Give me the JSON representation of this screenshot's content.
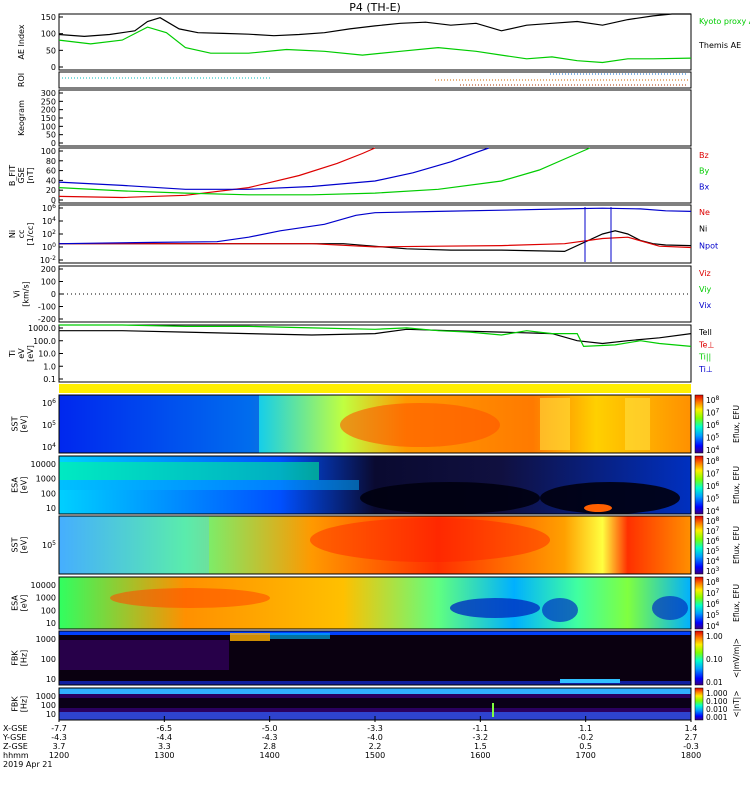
{
  "chart_data": {
    "type": "line",
    "title": "P4 (TH-E)",
    "panels": [
      {
        "ylabel": [
          "AE Index"
        ],
        "yticks": [
          "150",
          "100",
          "50",
          "0"
        ],
        "ylim": [
          0,
          150
        ],
        "legend": [
          {
            "name": "Kyoto proxy AE",
            "color": "#00cc00"
          },
          {
            "name": "Themis AE",
            "color": "#000000"
          }
        ],
        "series": [
          {
            "name": "Themis AE",
            "color": "#000000",
            "x": [
              0,
              0.04,
              0.08,
              0.12,
              0.14,
              0.16,
              0.19,
              0.22,
              0.26,
              0.3,
              0.34,
              0.38,
              0.42,
              0.46,
              0.5,
              0.54,
              0.58,
              0.62,
              0.66,
              0.7,
              0.74,
              0.78,
              0.82,
              0.86,
              0.9,
              0.94,
              0.97,
              1.0
            ],
            "y": [
              95,
              90,
              95,
              105,
              130,
              140,
              110,
              100,
              98,
              96,
              92,
              95,
              100,
              110,
              118,
              125,
              128,
              120,
              125,
              105,
              120,
              125,
              130,
              120,
              135,
              145,
              150,
              160
            ]
          },
          {
            "name": "Kyoto proxy AE",
            "color": "#00cc00",
            "x": [
              0,
              0.05,
              0.1,
              0.14,
              0.17,
              0.2,
              0.24,
              0.3,
              0.36,
              0.42,
              0.48,
              0.54,
              0.6,
              0.66,
              0.7,
              0.74,
              0.78,
              0.82,
              0.86,
              0.9,
              0.94,
              1.0
            ],
            "y": [
              80,
              70,
              80,
              115,
              100,
              60,
              45,
              45,
              55,
              50,
              40,
              50,
              60,
              50,
              40,
              30,
              35,
              25,
              20,
              30,
              30,
              32
            ]
          }
        ]
      },
      {
        "ylabel": [
          "ROI"
        ],
        "yticks": [],
        "series": []
      },
      {
        "ylabel": [
          "Keogram"
        ],
        "yticks": [
          "300",
          "250",
          "200",
          "150",
          "100",
          "50",
          "0"
        ],
        "ylim": [
          0,
          300
        ],
        "series": []
      },
      {
        "ylabel": [
          "B_FIT",
          "GSE",
          "[nT]"
        ],
        "yticks": [
          "100",
          "80",
          "60",
          "40",
          "20",
          "0"
        ],
        "ylim": [
          0,
          100
        ],
        "legend": [
          {
            "name": "Bz",
            "color": "#dd0000"
          },
          {
            "name": "By",
            "color": "#00cc00"
          },
          {
            "name": "Bx",
            "color": "#0000cc"
          }
        ],
        "series": [
          {
            "name": "Bz",
            "color": "#dd0000",
            "x": [
              0,
              0.1,
              0.2,
              0.3,
              0.38,
              0.44,
              0.48,
              0.5
            ],
            "y": [
              12,
              10,
              14,
              28,
              50,
              72,
              90,
              100
            ]
          },
          {
            "name": "By",
            "color": "#00cc00",
            "x": [
              0,
              0.1,
              0.2,
              0.3,
              0.4,
              0.5,
              0.6,
              0.7,
              0.76,
              0.8,
              0.84
            ],
            "y": [
              28,
              22,
              18,
              15,
              15,
              18,
              25,
              40,
              60,
              80,
              100
            ]
          },
          {
            "name": "Bx",
            "color": "#0000cc",
            "x": [
              0,
              0.1,
              0.2,
              0.3,
              0.4,
              0.5,
              0.56,
              0.62,
              0.66,
              0.68
            ],
            "y": [
              38,
              32,
              25,
              25,
              30,
              40,
              55,
              75,
              92,
              100
            ]
          }
        ]
      },
      {
        "ylabel": [
          "Ni",
          "cc",
          "[1/cc]"
        ],
        "yticks": [
          "10^6",
          "10^4",
          "10^2",
          "10^0",
          "10^-2"
        ],
        "ylim": [
          -3,
          6
        ],
        "legend": [
          {
            "name": "Ne",
            "color": "#dd0000"
          },
          {
            "name": "Ni",
            "color": "#000000"
          },
          {
            "name": "Npot",
            "color": "#0000cc"
          }
        ],
        "series": [
          {
            "name": "Ni",
            "color": "#000000",
            "x": [
              0,
              0.2,
              0.45,
              0.55,
              0.62,
              0.7,
              0.8,
              0.86,
              0.88,
              0.9,
              0.92,
              0.94,
              0.96,
              1.0
            ],
            "y": [
              0,
              0,
              0,
              -0.8,
              -1,
              -1,
              -1.2,
              1.5,
              2,
              1.5,
              0.5,
              0,
              -0.2,
              -0.3
            ]
          },
          {
            "name": "Ne",
            "color": "#dd0000",
            "x": [
              0,
              0.2,
              0.4,
              0.5,
              0.6,
              0.7,
              0.8,
              0.86,
              0.9,
              0.95,
              1.0
            ],
            "y": [
              0,
              0,
              0,
              -0.5,
              -0.4,
              -0.3,
              0,
              0.8,
              1,
              -0.4,
              -0.6
            ]
          },
          {
            "name": "Npot",
            "color": "#0000cc",
            "x": [
              0,
              0.15,
              0.25,
              0.3,
              0.35,
              0.42,
              0.47,
              0.5,
              0.6,
              0.7,
              0.8,
              0.86,
              0.92,
              0.96,
              1.0
            ],
            "y": [
              0,
              0.2,
              0.3,
              1,
              2,
              3,
              4.4,
              4.8,
              5,
              5.2,
              5.4,
              5.5,
              5.4,
              5.1,
              5
            ]
          }
        ]
      },
      {
        "ylabel": [
          "Vi",
          "[km/s]"
        ],
        "yticks": [
          "200",
          "100",
          "0",
          "-100",
          "-200"
        ],
        "ylim": [
          -250,
          250
        ],
        "legend": [
          {
            "name": "Viz",
            "color": "#dd0000"
          },
          {
            "name": "Viy",
            "color": "#00cc00"
          },
          {
            "name": "Vix",
            "color": "#0000cc"
          }
        ],
        "series": []
      },
      {
        "ylabel": [
          "Ti",
          "eV",
          "[eV]"
        ],
        "yticks": [
          "1000.0",
          "100.0",
          "10.0",
          "1.0",
          "0.1"
        ],
        "ylim": [
          -1,
          3
        ],
        "legend": [
          {
            "name": "Tell",
            "color": "#000000"
          },
          {
            "name": "Te⊥",
            "color": "#dd0000"
          },
          {
            "name": "Ti||",
            "color": "#00cc00"
          },
          {
            "name": "Ti⊥",
            "color": "#0000cc"
          }
        ],
        "series": [
          {
            "name": "Tell",
            "color": "#000000",
            "x": [
              0,
              0.1,
              0.2,
              0.3,
              0.4,
              0.5,
              0.55,
              0.62,
              0.7,
              0.78,
              0.82,
              0.86,
              0.9,
              0.95,
              1.0
            ],
            "y": [
              2.6,
              2.6,
              2.5,
              2.4,
              2.3,
              2.4,
              2.7,
              2.6,
              2.5,
              2.4,
              1.9,
              1.7,
              1.9,
              2.1,
              2.4
            ]
          },
          {
            "name": "Ti||",
            "color": "#00cc00",
            "x": [
              0,
              0.1,
              0.2,
              0.3,
              0.4,
              0.5,
              0.55,
              0.6,
              0.65,
              0.7,
              0.74,
              0.78,
              0.82,
              0.83,
              0.88,
              0.92,
              0.95,
              1.0
            ],
            "y": [
              3.0,
              3.0,
              2.9,
              2.9,
              2.8,
              2.7,
              2.8,
              2.6,
              2.5,
              2.3,
              2.6,
              2.4,
              2.4,
              1.5,
              1.6,
              1.9,
              1.7,
              1.5
            ]
          }
        ]
      }
    ],
    "spectrograms": [
      {
        "ylabel": [
          "SST",
          "[eV]"
        ],
        "yticks": [
          "10^6",
          "10^5",
          "10^4"
        ],
        "cb_label": "Eflux, EFU",
        "cb_ticks": [
          "10^8",
          "10^7",
          "10^6",
          "10^5",
          "10^4"
        ]
      },
      {
        "ylabel": [
          "ESA",
          "[eV]"
        ],
        "yticks": [
          "10000",
          "1000",
          "100",
          "10"
        ],
        "cb_label": "Eflux, EFU",
        "cb_ticks": [
          "10^8",
          "10^7",
          "10^6",
          "10^5",
          "10^4"
        ]
      },
      {
        "ylabel": [
          "SST",
          "[eV]"
        ],
        "yticks": [
          "10^5"
        ],
        "cb_label": "Eflux, EFU",
        "cb_ticks": [
          "10^8",
          "10^7",
          "10^6",
          "10^5",
          "10^4",
          "10^3"
        ]
      },
      {
        "ylabel": [
          "ESA",
          "[eV]"
        ],
        "yticks": [
          "10000",
          "1000",
          "100",
          "10"
        ],
        "cb_label": "Eflux, EFU",
        "cb_ticks": [
          "10^8",
          "10^7",
          "10^6",
          "10^5",
          "10^4"
        ]
      },
      {
        "ylabel": [
          "FBK",
          "[Hz]"
        ],
        "yticks": [
          "1000",
          "100",
          "10"
        ],
        "cb_label": "<|mV/m|>",
        "cb_ticks": [
          "1.00",
          "0.10",
          "0.01"
        ]
      },
      {
        "ylabel": [
          "FBK",
          "[Hz]"
        ],
        "yticks": [
          "1000",
          "100",
          "10"
        ],
        "cb_label": "<|nT|>",
        "cb_ticks": [
          "1.000",
          "0.100",
          "0.010",
          "0.001"
        ]
      }
    ],
    "x_axis": {
      "row_labels": [
        "X-GSE",
        "Y-GSE",
        "Z-GSE",
        "hhmm",
        "2019 Apr 21"
      ],
      "columns": [
        [
          "-7.7",
          "-4.3",
          "3.7",
          "1200"
        ],
        [
          "-6.5",
          "-4.4",
          "3.3",
          "1300"
        ],
        [
          "-5.0",
          "-4.3",
          "2.8",
          "1400"
        ],
        [
          "-3.3",
          "-4.0",
          "2.2",
          "1500"
        ],
        [
          "-1.1",
          "-3.2",
          "1.5",
          "1600"
        ],
        [
          "1.1",
          "-0.2",
          "0.5",
          "1700"
        ],
        [
          "1.4",
          "2.7",
          "-0.3",
          "1800"
        ]
      ]
    }
  }
}
